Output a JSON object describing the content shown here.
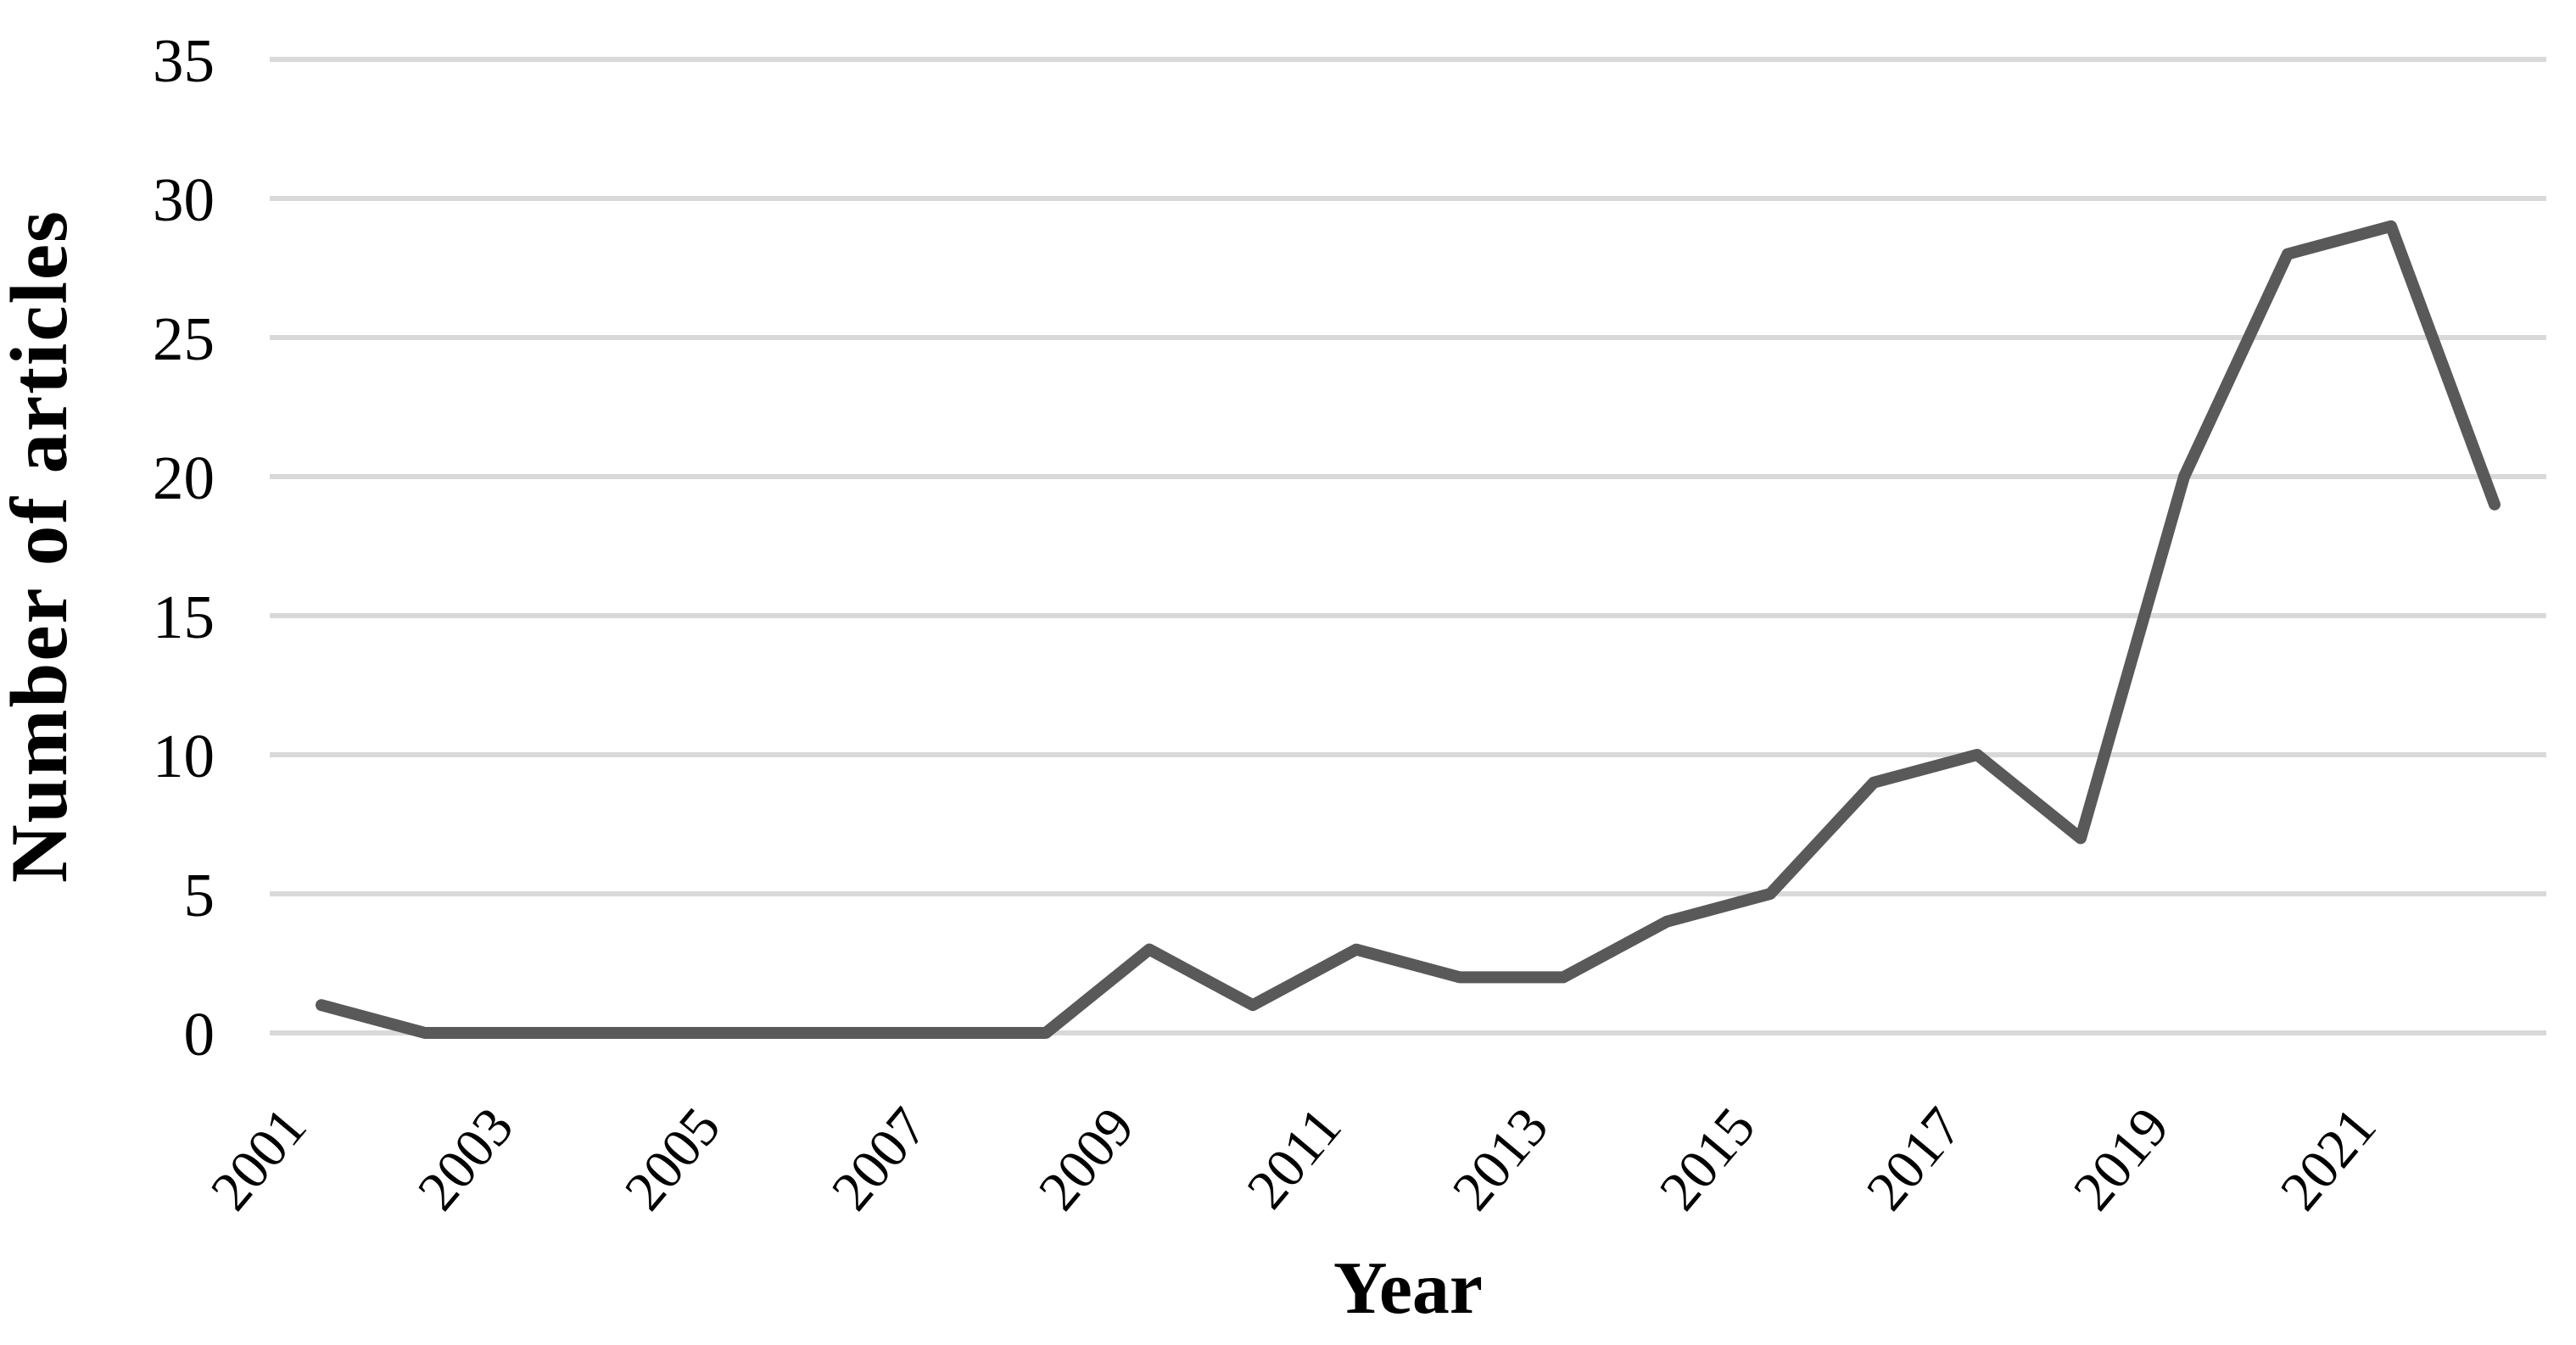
{
  "chart_data": {
    "type": "line",
    "title": "",
    "xlabel": "Year",
    "ylabel": "Number of articles",
    "x": [
      2001,
      2002,
      2003,
      2004,
      2005,
      2006,
      2007,
      2008,
      2009,
      2010,
      2011,
      2012,
      2013,
      2014,
      2015,
      2016,
      2017,
      2018,
      2019,
      2020,
      2021,
      2022
    ],
    "values": [
      1,
      0,
      0,
      0,
      0,
      0,
      0,
      0,
      3,
      1,
      3,
      2,
      2,
      4,
      5,
      9,
      10,
      7,
      20,
      28,
      29,
      19
    ],
    "series_name": "Number of articles",
    "ylim": [
      0,
      35
    ],
    "yticks": [
      0,
      5,
      10,
      15,
      20,
      25,
      30,
      35
    ],
    "xtick_labels": [
      "2001",
      "2003",
      "2005",
      "2007",
      "2009",
      "2011",
      "2013",
      "2015",
      "2017",
      "2019",
      "2021"
    ],
    "grid": "horizontal",
    "legend": "none",
    "line_color": "#595959",
    "gridline_color": "#d9d9d9",
    "text_color": "#000000",
    "background_color": "#ffffff"
  }
}
